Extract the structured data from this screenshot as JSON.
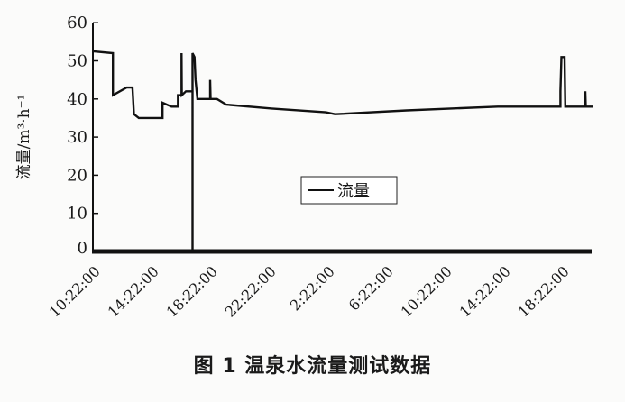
{
  "chart_data": {
    "type": "line",
    "title": "",
    "ylabel": "流量/m³·h⁻¹",
    "xlabel": "",
    "ylim": [
      0,
      60
    ],
    "yticks": [
      "0",
      "10",
      "20",
      "30",
      "40",
      "50",
      "60"
    ],
    "xticks": [
      "10:22:00",
      "14:22:00",
      "18:22:00",
      "22:22:00",
      "2:22:00",
      "6:22:00",
      "10:22:00",
      "14:22:00",
      "18:22:00"
    ],
    "legend": {
      "label": "流量",
      "placement": "center"
    },
    "grid": false,
    "series": [
      {
        "name": "流量",
        "color": "#111111",
        "points": [
          [
            "10:22",
            52.5
          ],
          [
            "11:44",
            52
          ],
          [
            "11:44",
            41
          ],
          [
            "12:40",
            43
          ],
          [
            "13:04",
            43
          ],
          [
            "13:10",
            36
          ],
          [
            "13:30",
            35
          ],
          [
            "15:07",
            35
          ],
          [
            "15:07",
            39
          ],
          [
            "15:44",
            38
          ],
          [
            "16:10",
            38
          ],
          [
            "16:10",
            41
          ],
          [
            "16:25",
            41
          ],
          [
            "16:25",
            52
          ],
          [
            "16:26",
            41
          ],
          [
            "16:43",
            42
          ],
          [
            "17:10",
            42
          ],
          [
            "17:10",
            0
          ],
          [
            "17:10",
            52
          ],
          [
            "17:18",
            51
          ],
          [
            "17:22",
            45
          ],
          [
            "17:30",
            40
          ],
          [
            "18:22",
            40
          ],
          [
            "18:22",
            45
          ],
          [
            "18:24",
            40
          ],
          [
            "18:50",
            40
          ],
          [
            "19:28",
            38.5
          ],
          [
            "22:34",
            37.5
          ],
          [
            "02:16",
            36.5
          ],
          [
            "02:53",
            36
          ],
          [
            "07:46",
            37
          ],
          [
            "14:00",
            38
          ],
          [
            "18:16",
            38
          ],
          [
            "18:16",
            42
          ],
          [
            "18:20",
            51
          ],
          [
            "18:33",
            51
          ],
          [
            "18:36",
            38
          ],
          [
            "19:58",
            38
          ],
          [
            "19:58",
            42
          ],
          [
            "20:00",
            38
          ],
          [
            "20:28",
            38
          ]
        ]
      }
    ]
  },
  "caption": "图 1  温泉水流量测试数据"
}
